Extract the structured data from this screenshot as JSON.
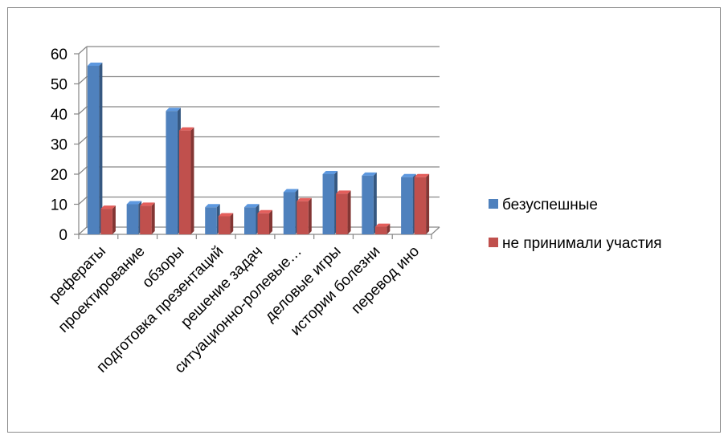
{
  "chart_data": {
    "type": "bar",
    "style": "3d-clustered-column",
    "categories": [
      "рефераты",
      "проектирование",
      "обзоры",
      "подготовка презентаций",
      "решение задач",
      "ситуационно-ролевые…",
      "деловые игры",
      "истории болезни",
      "перевод ино"
    ],
    "series": [
      {
        "name": "безуспешные",
        "color": "#4F81BD",
        "values": [
          56,
          10,
          41,
          9,
          9,
          14,
          20,
          19.5,
          19
        ]
      },
      {
        "name": "не принимали участия",
        "color": "#C0504D",
        "values": [
          8.5,
          9.5,
          34.5,
          6,
          7,
          11,
          13.5,
          2.5,
          19
        ]
      }
    ],
    "ylim": [
      0,
      60
    ],
    "yticks": [
      0,
      10,
      20,
      30,
      40,
      50,
      60
    ],
    "grid": true,
    "legend": "right"
  }
}
